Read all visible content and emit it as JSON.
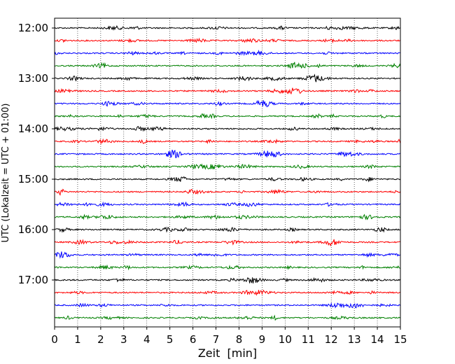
{
  "chart_data": {
    "type": "line",
    "title": "",
    "xlabel": "Zeit  [min]",
    "ylabel": "UTC (Lokalzeit = UTC + 01:00)",
    "xlim": [
      0,
      15
    ],
    "x_ticks": [
      "0",
      "1",
      "2",
      "3",
      "4",
      "5",
      "6",
      "7",
      "8",
      "9",
      "10",
      "11",
      "12",
      "13",
      "14",
      "15"
    ],
    "y_ticks": [
      "12:00",
      "13:00",
      "14:00",
      "15:00",
      "16:00",
      "17:00"
    ],
    "grid": "vertical dotted lines at each minute",
    "trace_colors": [
      "#000000",
      "#ff0000",
      "#0000ff",
      "#008000"
    ],
    "traces": [
      {
        "start": "12:00",
        "color": "#000000"
      },
      {
        "start": "12:15",
        "color": "#ff0000"
      },
      {
        "start": "12:30",
        "color": "#0000ff"
      },
      {
        "start": "12:45",
        "color": "#008000"
      },
      {
        "start": "13:00",
        "color": "#000000"
      },
      {
        "start": "13:15",
        "color": "#ff0000"
      },
      {
        "start": "13:30",
        "color": "#0000ff"
      },
      {
        "start": "13:45",
        "color": "#008000"
      },
      {
        "start": "14:00",
        "color": "#000000"
      },
      {
        "start": "14:15",
        "color": "#ff0000"
      },
      {
        "start": "14:30",
        "color": "#0000ff"
      },
      {
        "start": "14:45",
        "color": "#008000"
      },
      {
        "start": "15:00",
        "color": "#000000"
      },
      {
        "start": "15:15",
        "color": "#ff0000"
      },
      {
        "start": "15:30",
        "color": "#0000ff"
      },
      {
        "start": "15:45",
        "color": "#008000"
      },
      {
        "start": "16:00",
        "color": "#000000"
      },
      {
        "start": "16:15",
        "color": "#ff0000"
      },
      {
        "start": "16:30",
        "color": "#0000ff"
      },
      {
        "start": "16:45",
        "color": "#008000"
      },
      {
        "start": "17:00",
        "color": "#000000"
      },
      {
        "start": "17:15",
        "color": "#ff0000"
      },
      {
        "start": "17:30",
        "color": "#0000ff"
      },
      {
        "start": "17:45",
        "color": "#008000"
      }
    ]
  }
}
